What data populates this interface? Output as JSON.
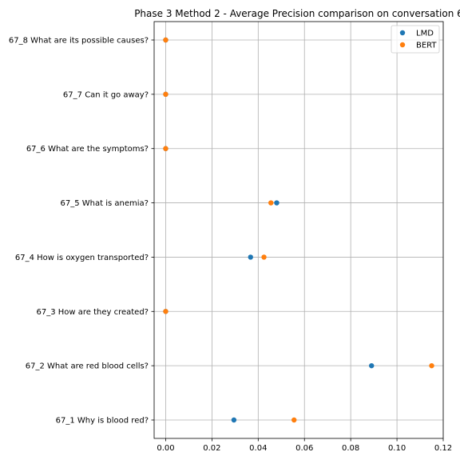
{
  "chart_data": {
    "type": "scatter",
    "title": "Phase 3 Method 2 - Average Precision comparison on conversation 6",
    "xlabel": "",
    "ylabel": "",
    "categories": [
      "67_1 Why is blood red?",
      "67_2 What are red blood cells?",
      "67_3 How are they created?",
      "67_4 How is oxygen transported?",
      "67_5 What is anemia?",
      "67_6 What are the symptoms?",
      "67_7 Can it go away?",
      "67_8 What are its possible causes?"
    ],
    "series": [
      {
        "name": "LMD",
        "color": "#1f77b4",
        "values": [
          0.0295,
          0.089,
          0.0,
          0.0367,
          0.048,
          0.0,
          0.0,
          0.0
        ]
      },
      {
        "name": "BERT",
        "color": "#ff7f0e",
        "values": [
          0.0555,
          0.115,
          0.0,
          0.0425,
          0.0455,
          0.0,
          0.0,
          0.0
        ]
      }
    ],
    "xlim": [
      -0.005,
      0.12
    ],
    "xticks": [
      0.0,
      0.02,
      0.04,
      0.06,
      0.08,
      0.1,
      0.12
    ],
    "xtick_labels": [
      "0.00",
      "0.02",
      "0.04",
      "0.06",
      "0.08",
      "0.10",
      "0.12"
    ],
    "grid": true,
    "legend": "top-right"
  }
}
